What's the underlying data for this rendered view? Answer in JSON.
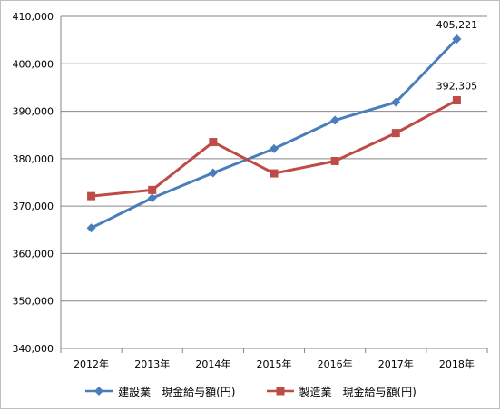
{
  "chart_data": {
    "type": "line",
    "categories": [
      "2012年",
      "2013年",
      "2014年",
      "2015年",
      "2016年",
      "2017年",
      "2018年"
    ],
    "ylim": [
      340000,
      410000
    ],
    "ytick_step": 10000,
    "yticks": [
      "340,000",
      "350,000",
      "360,000",
      "370,000",
      "380,000",
      "390,000",
      "400,000",
      "410,000"
    ],
    "grid": true,
    "legend_position": "bottom",
    "series": [
      {
        "name": "建設業　現金給与額(円)",
        "color": "#4a7ebb",
        "marker": "diamond",
        "values": [
          365400,
          371700,
          377000,
          382100,
          388100,
          391900,
          405221
        ],
        "end_label": "405,221"
      },
      {
        "name": "製造業　現金給与額(円)",
        "color": "#be4b48",
        "marker": "square",
        "values": [
          372100,
          373400,
          383500,
          376900,
          379500,
          385400,
          392305
        ],
        "end_label": "392,305"
      }
    ]
  }
}
